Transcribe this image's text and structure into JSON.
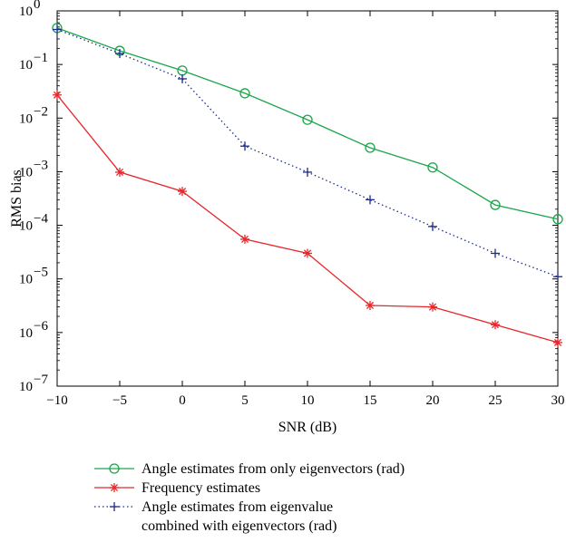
{
  "chart_data": {
    "type": "line",
    "title": "",
    "xlabel": "SNR (dB)",
    "ylabel": "RMS bias",
    "x": [
      -10,
      -5,
      0,
      5,
      10,
      15,
      20,
      25,
      30
    ],
    "xlim": [
      -10,
      30
    ],
    "xticks": [
      -10,
      -5,
      0,
      5,
      10,
      15,
      20,
      25,
      30
    ],
    "xtick_labels": [
      "−10",
      "−5",
      "0",
      "5",
      "10",
      "15",
      "20",
      "25",
      "30"
    ],
    "yscale": "log",
    "ylim": [
      1e-07,
      1
    ],
    "yticks": [
      1,
      0.1,
      0.01,
      0.001,
      0.0001,
      1e-05,
      1e-06,
      1e-07
    ],
    "ytick_labels": [
      {
        "base": "10",
        "exp": "0"
      },
      {
        "base": "10",
        "exp": "−1"
      },
      {
        "base": "10",
        "exp": "−2"
      },
      {
        "base": "10",
        "exp": "−3"
      },
      {
        "base": "10",
        "exp": "−4"
      },
      {
        "base": "10",
        "exp": "−5"
      },
      {
        "base": "10",
        "exp": "−6"
      },
      {
        "base": "10",
        "exp": "−7"
      }
    ],
    "grid": false,
    "legend_position": "bottom",
    "series": [
      {
        "legend_lines": [
          "Angle estimates from only eigenvectors (rad)"
        ],
        "color": "#1aa64a",
        "marker": "circle",
        "line_style": "solid",
        "values": [
          0.48,
          0.18,
          0.077,
          0.029,
          0.0093,
          0.0028,
          0.0012,
          0.00024,
          0.00013
        ]
      },
      {
        "legend_lines": [
          "Frequency estimates"
        ],
        "color": "#e8262a",
        "marker": "asterisk",
        "line_style": "solid",
        "values": [
          0.027,
          0.00098,
          0.00043,
          5.5e-05,
          3e-05,
          3.2e-06,
          3e-06,
          1.4e-06,
          6.5e-07
        ]
      },
      {
        "legend_lines": [
          "Angle estimates from eigenvalue",
          "combined with eigenvectors (rad)"
        ],
        "color": "#1a2a8c",
        "marker": "plus",
        "line_style": "dotted",
        "values": [
          0.45,
          0.16,
          0.054,
          0.003,
          0.00098,
          0.0003,
          9.5e-05,
          3e-05,
          1.1e-05
        ]
      }
    ]
  }
}
